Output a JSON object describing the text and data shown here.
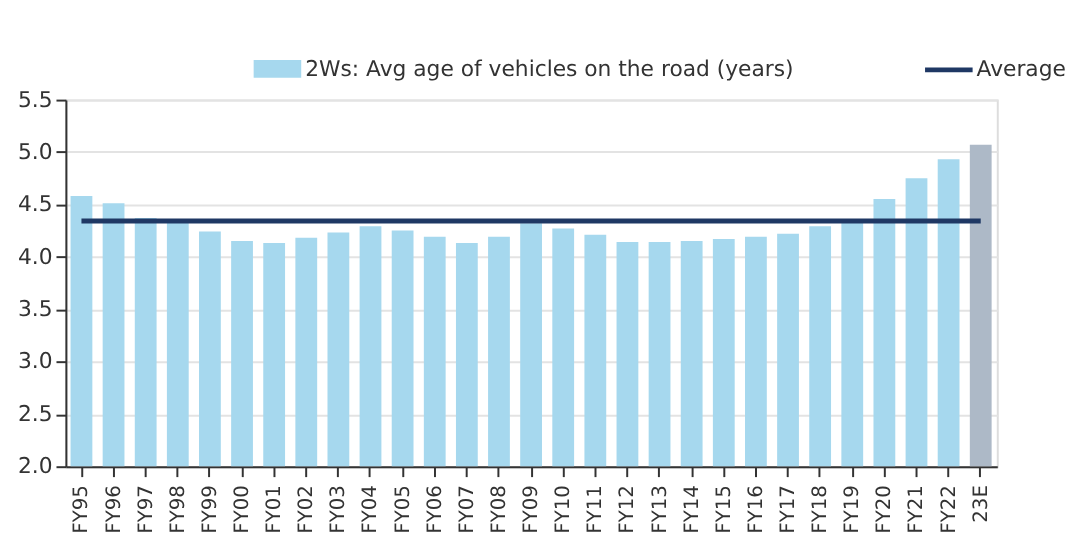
{
  "chart_data": {
    "type": "bar",
    "categories": [
      "FY95",
      "FY96",
      "FY97",
      "FY98",
      "FY99",
      "FY00",
      "FY01",
      "FY02",
      "FY03",
      "FY04",
      "FY05",
      "FY06",
      "FY07",
      "FY08",
      "FY09",
      "FY10",
      "FY11",
      "FY12",
      "FY13",
      "FY14",
      "FY15",
      "FY16",
      "FY17",
      "FY18",
      "FY19",
      "FY20",
      "FY21",
      "FY22",
      "23E"
    ],
    "series": [
      {
        "name": "2Ws: Avg age of vehicles on the road (years)",
        "color": "#a6d8ee",
        "values": [
          4.58,
          4.51,
          4.37,
          4.35,
          4.24,
          4.15,
          4.13,
          4.18,
          4.23,
          4.29,
          4.25,
          4.19,
          4.13,
          4.19,
          4.32,
          4.27,
          4.21,
          4.14,
          4.14,
          4.15,
          4.17,
          4.19,
          4.22,
          4.29,
          4.35,
          4.55,
          4.75,
          4.93,
          5.07
        ],
        "colors": [
          "#a6d8ee",
          "#a6d8ee",
          "#a6d8ee",
          "#a6d8ee",
          "#a6d8ee",
          "#a6d8ee",
          "#a6d8ee",
          "#a6d8ee",
          "#a6d8ee",
          "#a6d8ee",
          "#a6d8ee",
          "#a6d8ee",
          "#a6d8ee",
          "#a6d8ee",
          "#a6d8ee",
          "#a6d8ee",
          "#a6d8ee",
          "#a6d8ee",
          "#a6d8ee",
          "#a6d8ee",
          "#a6d8ee",
          "#a6d8ee",
          "#a6d8ee",
          "#a6d8ee",
          "#a6d8ee",
          "#a6d8ee",
          "#a6d8ee",
          "#a6d8ee",
          "#adb9c7"
        ]
      }
    ],
    "ylim": [
      2.0,
      5.5
    ],
    "yticks": [
      {
        "value": 2.0,
        "label": "2.0"
      },
      {
        "value": 2.5,
        "label": "2.5"
      },
      {
        "value": 3.0,
        "label": "3.0"
      },
      {
        "value": 3.5,
        "label": "3.5"
      },
      {
        "value": 4.0,
        "label": "4.0"
      },
      {
        "value": 4.5,
        "label": "4.5"
      },
      {
        "value": 5.0,
        "label": "5.0"
      },
      {
        "value": 5.5,
        "label": "5.5"
      }
    ],
    "ref_lines": [
      {
        "axis": "y",
        "value": 4.34,
        "label": "Average",
        "color": "#1f3864",
        "line_style": "solid"
      }
    ],
    "grid": "y",
    "legend": "top"
  }
}
